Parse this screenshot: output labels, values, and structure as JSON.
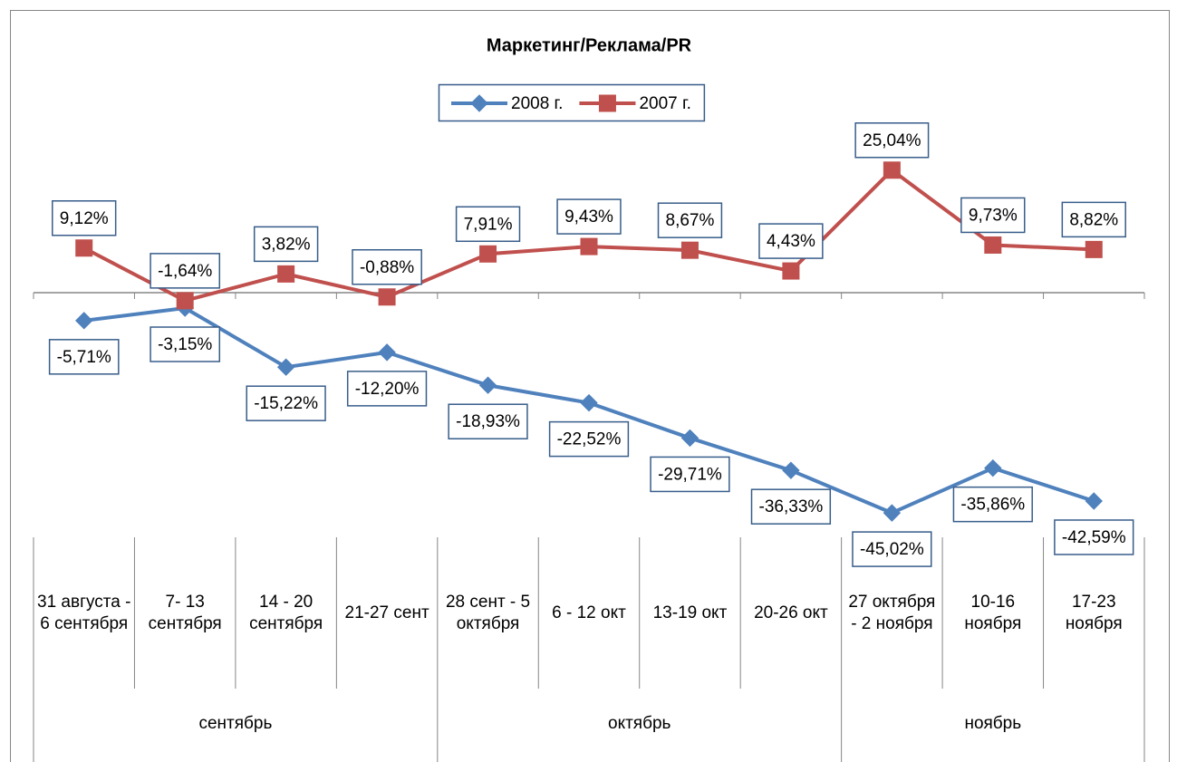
{
  "chart_data": {
    "type": "line",
    "title": "Маркетинг/Реклама/PR",
    "categories": [
      "31 августа - 6 сентября",
      "7- 13 сентября",
      "14 - 20 сентября",
      "21-27 сент",
      "28 сент - 5 октября",
      "6 - 12 окт",
      "13-19 окт",
      "20-26 окт",
      "27 октября - 2 ноября",
      "10-16 ноября",
      "17-23 ноября"
    ],
    "groups": [
      {
        "name": "сентябрь",
        "count": 4
      },
      {
        "name": "октябрь",
        "count": 4
      },
      {
        "name": "ноябрь",
        "count": 3
      }
    ],
    "series": [
      {
        "name": "2008 г.",
        "color": "#4f81bd",
        "marker": "diamond",
        "label_position": "below",
        "values": [
          -5.71,
          -3.15,
          -15.22,
          -12.2,
          -18.93,
          -22.52,
          -29.71,
          -36.33,
          -45.02,
          -35.86,
          -42.59
        ],
        "value_labels": [
          "-5,71%",
          "-3,15%",
          "-15,22%",
          "-12,20%",
          "-18,93%",
          "-22,52%",
          "-29,71%",
          "-36,33%",
          "-45,02%",
          "-35,86%",
          "-42,59%"
        ]
      },
      {
        "name": "2007 г.",
        "color": "#c0504d",
        "marker": "square",
        "label_position": "above",
        "values": [
          9.12,
          -1.64,
          3.82,
          -0.88,
          7.91,
          9.43,
          8.67,
          4.43,
          25.04,
          9.73,
          8.82
        ],
        "value_labels": [
          "9,12%",
          "-1,64%",
          "3,82%",
          "-0,88%",
          "7,91%",
          "9,43%",
          "8,67%",
          "4,43%",
          "25,04%",
          "9,73%",
          "8,82%"
        ]
      }
    ],
    "ylim": [
      -50,
      30
    ],
    "legend": "top"
  }
}
